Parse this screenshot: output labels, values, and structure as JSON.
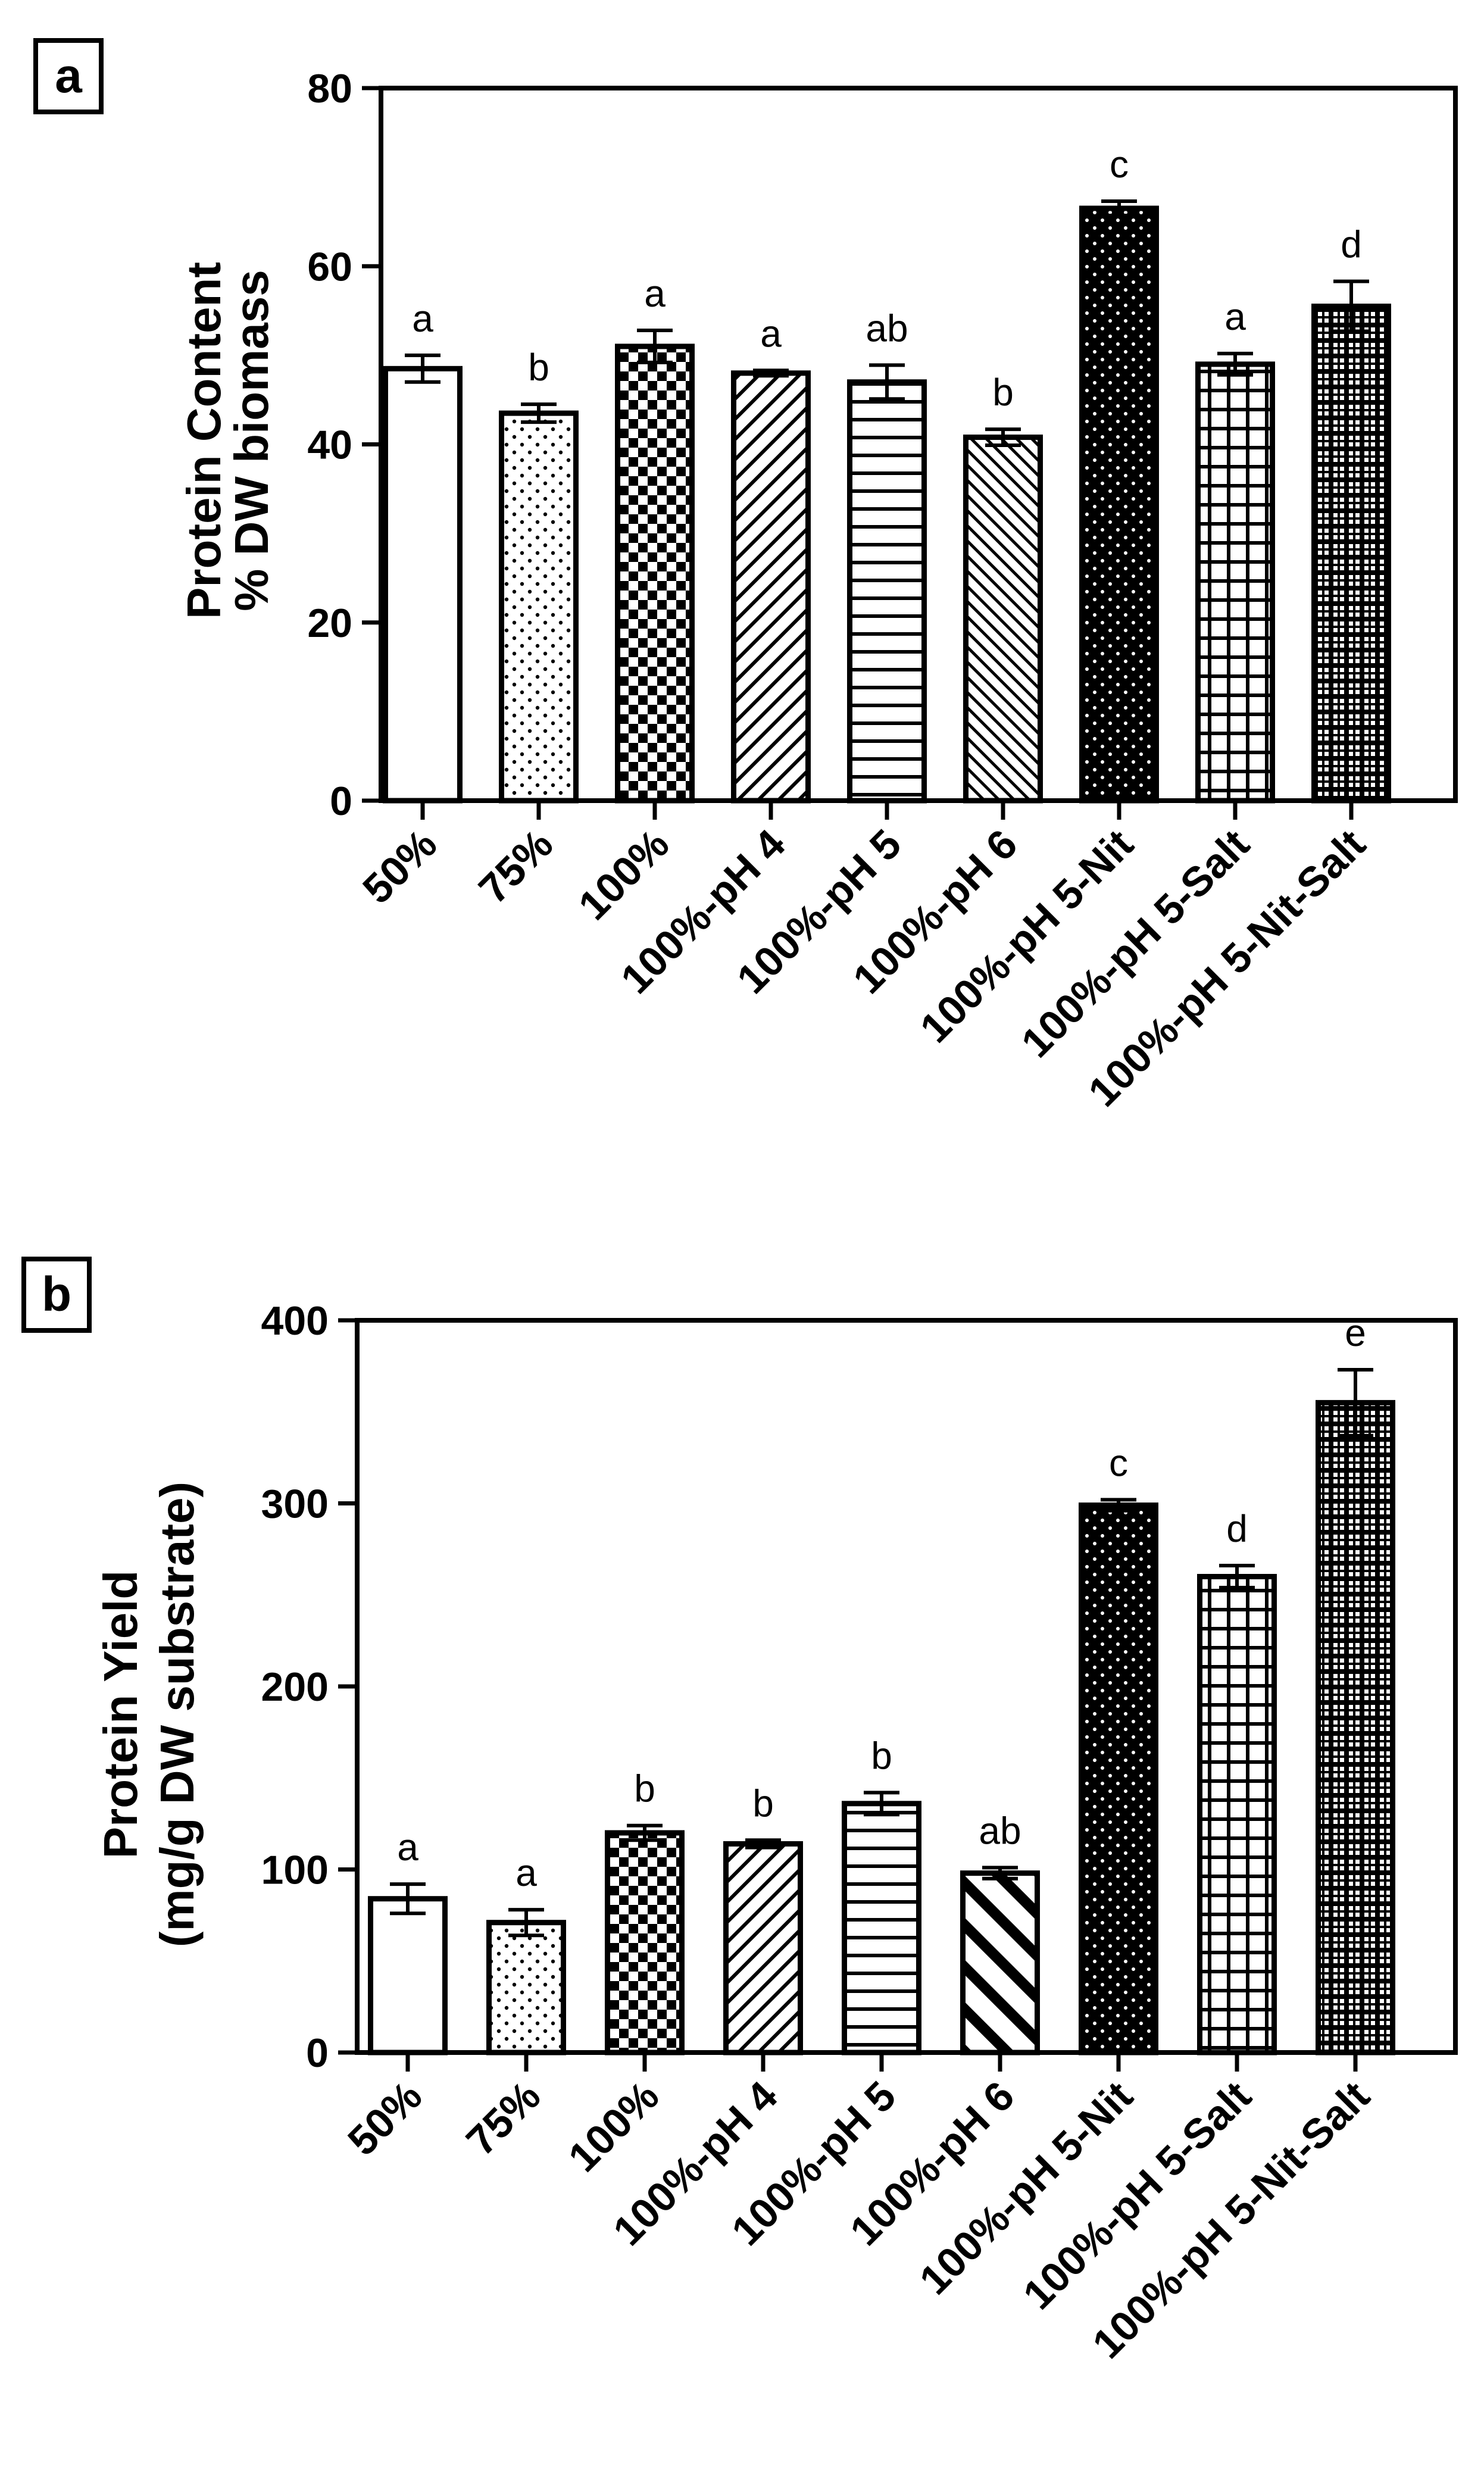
{
  "chart_data": [
    {
      "panel": "a",
      "type": "bar",
      "ylabel_lines": [
        "Protein Content",
        "% DW biomass"
      ],
      "ylim": [
        0,
        80
      ],
      "yticks": [
        0,
        20,
        40,
        60,
        80
      ],
      "categories": [
        "50%",
        "75%",
        "100%",
        "100%-pH 4",
        "100%-pH 5",
        "100%-pH 6",
        "100%-pH 5-Nit",
        "100%-pH 5-Salt",
        "100%-pH 5-Nit-Salt"
      ],
      "values": [
        48.5,
        43.5,
        51,
        48,
        47,
        40.8,
        66.5,
        49,
        55.5
      ],
      "errors": [
        1.5,
        1.0,
        1.8,
        0.3,
        1.9,
        0.9,
        0.8,
        1.2,
        2.8
      ],
      "significance": [
        "a",
        "b",
        "a",
        "a",
        "ab",
        "b",
        "c",
        "a",
        "d"
      ],
      "patterns": [
        "white",
        "dots",
        "checker",
        "diag",
        "horiz",
        "diag-dense",
        "black-dots",
        "grid",
        "black-grid"
      ]
    },
    {
      "panel": "b",
      "type": "bar",
      "ylabel_lines": [
        "Protein Yield",
        "(mg/g DW substrate)"
      ],
      "ylim": [
        0,
        400
      ],
      "yticks": [
        0,
        100,
        200,
        300,
        400
      ],
      "categories": [
        "50%",
        "75%",
        "100%",
        "100%-pH 4",
        "100%-pH 5",
        "100%-pH 6",
        "100%-pH 5-Nit",
        "100%-pH 5-Salt",
        "100%-pH 5-Nit-Salt"
      ],
      "values": [
        84,
        71,
        120,
        114,
        136,
        98,
        299,
        260,
        355
      ],
      "errors": [
        8,
        7,
        4,
        2,
        6,
        3,
        3,
        6,
        18
      ],
      "significance": [
        "a",
        "a",
        "b",
        "b",
        "b",
        "ab",
        "c",
        "d",
        "e"
      ],
      "patterns": [
        "white",
        "dots",
        "checker",
        "diag",
        "horiz",
        "diag-thick",
        "black-dots",
        "grid",
        "black-grid"
      ]
    }
  ]
}
